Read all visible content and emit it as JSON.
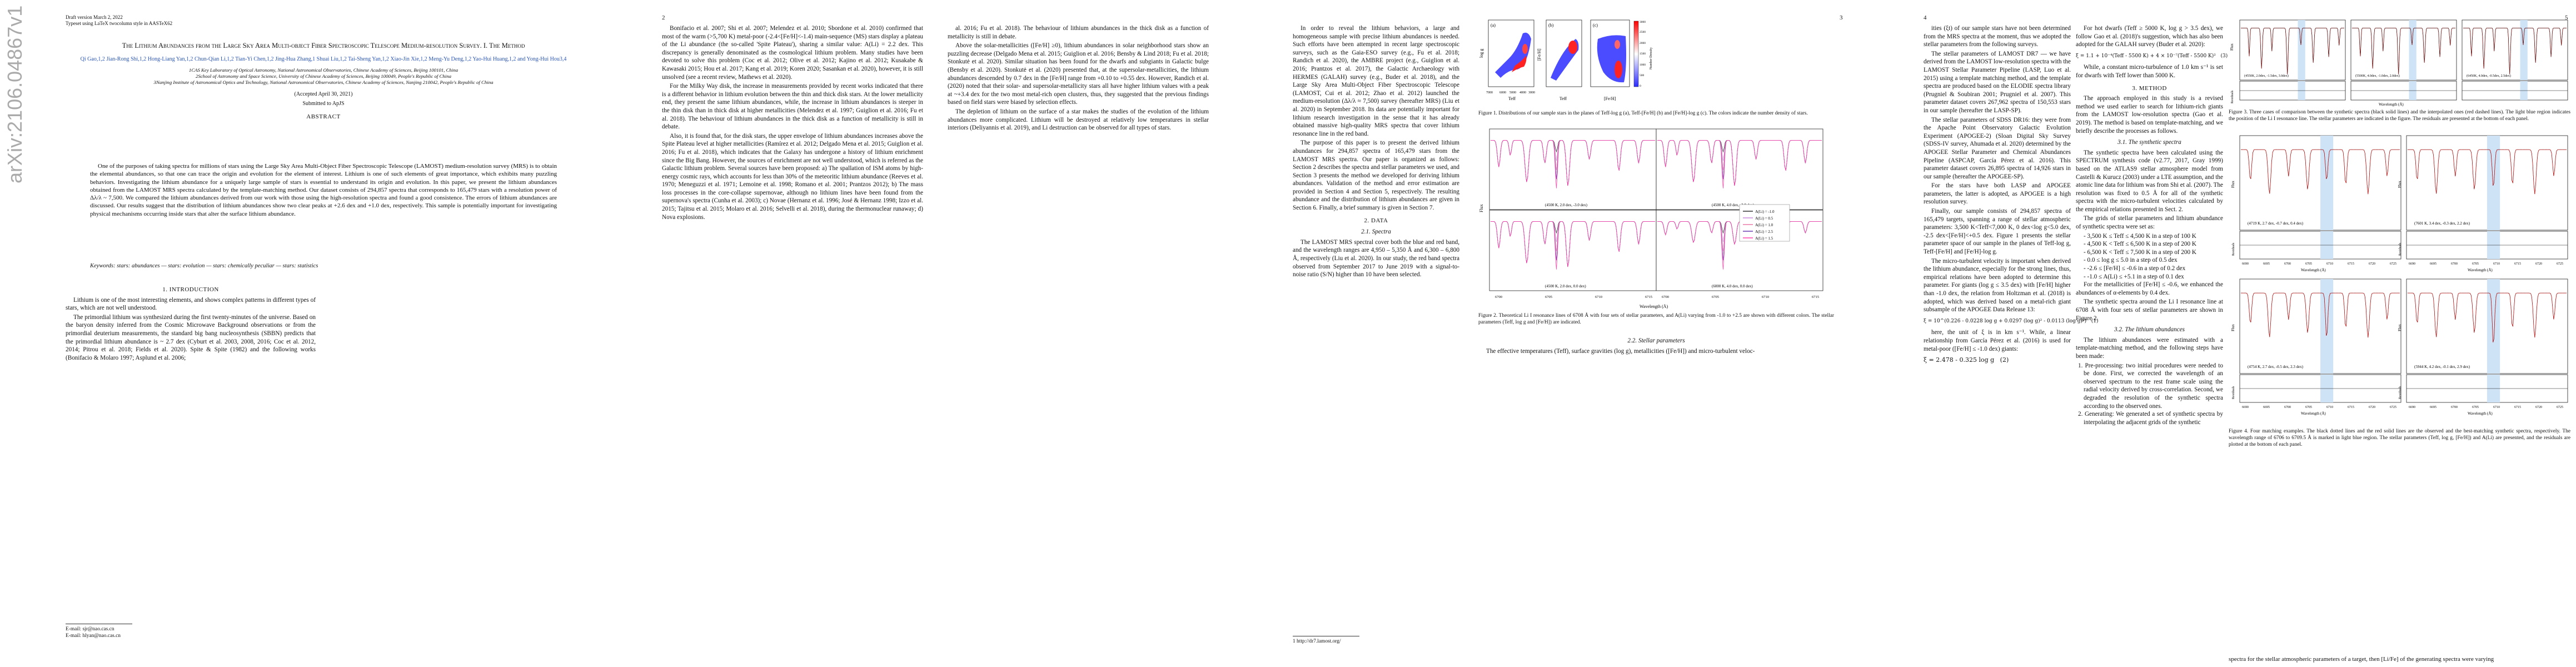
{
  "arxiv_stamp": "arXiv:2106.04867v1  [astro-ph.SR]  9 Jun 2021",
  "page1": {
    "draft_line": "Draft version March 2, 2022",
    "typeset_line": "Typeset using LaTeX twocolumn style in AASTeX62",
    "title": "The Lithium Abundances from the Large Sky Area Multi-object Fiber Spectroscopic Telescope Medium-resolution Survey. I. The Method",
    "authors": "Qi Gao,1,2 Jian-Rong Shi,1,2 Hong-Liang Yan,1,2 Chun-Qian Li,1,2 Tian-Yi Chen,1,2 Jing-Hua Zhang,1 Shuai Liu,1,2 Tai-Sheng Yan,1,2 Xiao-Jin Xie,1,2 Meng-Yu Deng,1,2 Yao-Hui Huang,1,2 and Yong-Hui Hou3,4",
    "affil_1": "1CAS Key Laboratory of Optical Astronomy, National Astronomical Observatories, Chinese Academy of Sciences, Beijing 100101, China",
    "affil_2": "2School of Astronomy and Space Science, University of Chinese Academy of Sciences, Beijing 100049, People's Republic of China",
    "affil_3": "3Nanjing Institute of Astronomical Optics and Technology, National Astronomical Observatories, Chinese Academy of Sciences, Nanjing 210042, People's Republic of China",
    "accepted": "(Accepted April 30, 2021)",
    "submitted": "Submitted to ApJS",
    "abstract_head": "ABSTRACT",
    "abstract": "One of the purposes of taking spectra for millions of stars using the Large Sky Area Multi-Object Fiber Spectroscopic Telescope (LAMOST) medium-resolution survey (MRS) is to obtain the elemental abundances, so that one can trace the origin and evolution for the element of interest. Lithium is one of such elements of great importance, which exhibits many puzzling behaviors. Investigating the lithium abundance for a uniquely large sample of stars is essential to understand its origin and evolution. In this paper, we present the lithium abundances obtained from the LAMOST MRS spectra calculated by the template-matching method. Our dataset consists of 294,857 spectra that corresponds to 165,479 stars with a resolution power of Δλ/λ ~ 7,500. We compared the lithium abundances derived from our work with those using the high-resolution spectra and found a good consistence. The errors of lithium abundances are discussed. Our results suggest that the distribution of lithium abundances show two clear peaks at +2.6 dex and +1.0 dex, respectively. This sample is potentially important for investigating physical mechanisms occurring inside stars that alter the surface lithium abundance.",
    "keywords": "Keywords: stars: abundances — stars: evolution — stars: chemically peculiar — stars: statistics",
    "intro_head": "1. INTRODUCTION",
    "intro_p1": "Lithium is one of the most interesting elements, and shows complex patterns in different types of stars, which are not well understood.",
    "intro_p2": "The primordial lithium was synthesized during the first twenty-minutes of the universe. Based on the baryon density inferred from the Cosmic Microwave Background observations or from the primordial deuterium measurements, the standard big bang nucleosynthesis (SBBN) predicts that the primordial lithium abundance is ~ 2.7 dex (Cyburt et al. 2003, 2008, 2016; Coc et al. 2012, 2014; Pitrou et al. 2018; Fields et al. 2020). Spite & Spite (1982) and the following works (Bonifacio & Molaro 1997; Asplund et al. 2006;",
    "footnote_1": "E-mail: sjr@nao.cas.cn",
    "footnote_2": "E-mail: hlyan@nao.cas.cn"
  },
  "page2": {
    "number": "2",
    "colA_p1": "Bonifacio et al. 2007; Shi et al. 2007; Melendez et al. 2010; Sbordone et al. 2010) confirmed that most of the warm (>5,700 K) metal-poor (-2.4<[Fe/H]<-1.4) main-sequence (MS) stars display a plateau of the Li abundance (the so-called 'Spite Plateau'), sharing a similar value: A(Li) = 2.2 dex. This discrepancy is generally denominated as the cosmological lithium problem. Many studies have been devoted to solve this problem (Coc et al. 2012; Olive et al. 2012; Kajino et al. 2012; Kusakabe & Kawasaki 2015; Hou et al. 2017; Kang et al. 2019; Koren 2020; Sasankan et al. 2020), however, it is still unsolved (see a recent review, Mathews et al. 2020).",
    "colA_p2": "For the Milky Way disk, the increase in measurements provided by recent works indicated that there is a different behavior in lithium evolution between the thin and thick disk stars. At the lower metallicity end, they present the same lithium abundances, while, the increase in lithium abundances is steeper in the thin disk than in thick disk at higher metallicities (Melendez et al. 1997; Guiglion et al. 2016; Fu et al. 2018). The behaviour of lithium abundances in the thick disk as a function of metallicity is still in debate.",
    "colA_p3": "Also, it is found that, for the disk stars, the upper envelope of lithium abundances increases above the Spite Plateau level at higher metallicities (Ramírez et al. 2012; Delgado Mena et al. 2015; Guiglion et al. 2016; Fu et al. 2018), which indicates that the Galaxy has undergone a history of lithium enrichment since the Big Bang. However, the sources of enrichment are not well understood, which is referred as the Galactic lithium problem. Several sources have been proposed: a) The spallation of ISM atoms by high-energy cosmic rays, which accounts for less than 30% of the meteoritic lithium abundance (Reeves et al. 1970; Meneguzzi et al. 1971; Lemoine et al. 1998; Romano et al. 2001; Prantzos 2012); b) The mass loss processes in the core-collapse supernovae, although no lithium lines have been found from the supernova's spectra (Cunha et al. 2003); c) Novae (Hernanz et al. 1996; José & Hernanz 1998; Izzo et al. 2015; Tajitsu et al. 2015; Molaro et al. 2016; Selvelli et al. 2018), during the thermonuclear runaway; d) Nova explosions.",
    "colB_p1": "al. 2016; Fu et al. 2018). The behaviour of lithium abundances in the thick disk as a function of metallicity is still in debate.",
    "colB_p2": "Above the solar-metallicities ([Fe/H] ≥0), lithium abundances in solar neighborhood stars show an puzzling decrease (Delgado Mena et al. 2015; Guiglion et al. 2016; Bensby & Lind 2018; Fu et al. 2018; Stonkutė et al. 2020). Similar situation has been found for the dwarfs and subgiants in Galactic bulge (Bensby et al. 2020). Stonkutė et al. (2020) presented that, at the supersolar-metallicities, the lithium abundances descended by 0.7 dex in the [Fe/H] range from +0.10 to +0.55 dex. However, Randich et al. (2020) noted that their solar- and supersolar-metallicity stars all have higher lithium values with a peak at ~+3.4 dex for the two most metal-rich open clusters, thus, they suggested that the previous findings based on field stars were biased by selection effects.",
    "colB_p3": "The depletion of lithium on the surface of a star makes the studies of the evolution of the lithium abundances more complicated. Lithium will be destroyed at relatively low temperatures in stellar interiors (Deliyannis et al. 2019), and Li destruction can be observed for all types of stars."
  },
  "page3": {
    "number": "3",
    "colA_p1": "In order to reveal the lithium behaviors, a large and homogeneous sample with precise lithium abundances is needed. Such efforts have been attempted in recent large spectroscopic surveys, such as the Gaia-ESO survey (e.g., Fu et al. 2018; Randich et al. 2020), the AMBRE project (e.g., Guiglion et al. 2016; Prantzos et al. 2017), the Galactic Archaeology with HERMES (GALAH) survey (e.g., Buder et al. 2018), and the Large Sky Area Multi-Object Fiber Spectroscopic Telescope (LAMOST, Cui et al. 2012; Zhao et al. 2012) launched the medium-resolution (Δλ/λ ≈ 7,500) survey (hereafter MRS) (Liu et al. 2020) in September 2018. Its data are potentially important for lithium research investigation in the sense that it has already obtained massive high-quality MRS spectra that cover lithium resonance line in the red band.",
    "colA_p2": "The purpose of this paper is to present the derived lithium abundances for 294,857 spectra of 165,479 stars from the LAMOST MRS spectra. Our paper is organized as follows: Section 2 describes the spectra and stellar parameters we used, and Section 3 presents the method we developed for deriving lithium abundances. Validation of the method and error estimation are provided in Section 4 and Section 5, respectively. The resulting abundance and the distribution of lithium abundances are given in Section 6. Finally, a brief summary is given in Section 7.",
    "data_head": "2. DATA",
    "spectra_head": "2.1. Spectra",
    "colA_p3": "The LAMOST MRS spectral cover both the blue and red band, and the wavelength ranges are 4,950 – 5,350 Å and 6,300 – 6,800 Å, respectively (Liu et al. 2020). In our study, the red band spectra observed from September 2017 to June 2019 with a signal-to-noise ratio (S/N) higher than 10 have been selected.",
    "footnote": "1 http://dr7.lamost.org/",
    "fig1_caption": "Figure 1. Distributions of our sample stars in the planes of Teff-log g (a), Teff-[Fe/H] (b) and [Fe/H]-log g (c). The colors indicate the number density of stars.",
    "fig2_caption": "Figure 2. Theoretical Li I resonance lines of 6708 Å with four sets of stellar parameters, and A(Li) varying from -1.0 to +2.5 are shown with different colors. The stellar parameters (Teff, log g and [Fe/H]) are indicated.",
    "stellar_head": "2.2. Stellar parameters",
    "colB_p1": "The effective temperatures (Teff), surface gravities (log g), metallicities ([Fe/H]) and micro-turbulent veloc-"
  },
  "page4": {
    "number": "4",
    "colA_p1": "ities (ξt) of our sample stars have not been determined from the MRS spectra at the moment, thus we adopted the stellar parameters from the following surveys.",
    "colA_p2": "The stellar parameters of LAMOST DR7 — we have derived from the LAMOST low-resolution spectra with the LAMOST Stellar Parameter Pipeline (LASP, Luo et al. 2015) using a template matching method, and the template spectra are produced based on the ELODIE spectra library (Prugniel & Soubiran 2001; Prugniel et al. 2007). This parameter dataset covers 267,962 spectra of 150,553 stars in our sample (hereafter the LASP-SP).",
    "colA_p3": "The stellar parameters of SDSS DR16: they were from the Apache Point Observatory Galactic Evolution Experiment (APOGEE-2) (Sloan Digital Sky Survey (SDSS-IV survey, Ahumada et al. 2020) determined by the APOGEE Stellar Parameter and Chemical Abundances Pipeline (ASPCAP, García Pérez et al. 2016). This parameter dataset covers 26,895 spectra of 14,926 stars in our sample (hereafter the APOGEE-SP).",
    "colA_p4": "For the stars have both LASP and APOGEE parameters, the latter is adopted, as APOGEE is a high resolution survey.",
    "colA_p5": "Finally, our sample consists of 294,857 spectra of 165,479 targets, spanning a range of stellar atmospheric parameters: 3,500 K<Teff<7,000 K, 0 dex<log g<5.0 dex, -2.5 dex<[Fe/H]<+0.5 dex. Figure 1 presents the stellar parameter space of our sample in the planes of Teff-log g, Teff-[Fe/H] and [Fe/H]-log g.",
    "colA_p6": "The micro-turbulent velocity is important when derived the lithium abundance, especially for the strong lines, thus, empirical relations have been adopted to determine this parameter. For giants (log g ≤ 3.5 dex) with [Fe/H] higher than -1.0 dex, the relation from Holtzman et al. (2018) is adopted, which was derived based on a metal-rich giant subsample of the APOGEE Data Release 13:",
    "eq1": "ξ = 10^(0.226 - 0.0228 log g + 0.0297 (log g)² - 0.0113 (log g)³)   (1)",
    "colA_p7": "here, the unit of ξ is in km s⁻¹. While, a linear relationship from García Pérez et al. (2016) is used for metal-poor ([Fe/H] ≤ -1.0 dex) giants:",
    "eq2": "ξ = 2.478 - 0.325 log g   (2)",
    "colB_p1": "For hot dwarfs (Teff ≥ 5000 K, log g > 3.5 dex), we follow Gao et al. (2018)'s suggestion, which has also been adopted for the GALAH survey (Buder et al. 2020):",
    "eq3": "ξ = 1.1 + 10⁻⁴(Teff - 5500 K) + 4 × 10⁻⁷(Teff - 5500 K)²   (3)",
    "colB_p2": "While, a constant micro-turbulence of 1.0 km s⁻¹ is set for dwarfs with Teff lower than 5000 K.",
    "method_head": "3. METHOD",
    "colB_p3": "The approach employed in this study is a revised method we used earlier to search for lithium-rich giants from the LAMOST low-resolution spectra (Gao et al. 2019). The method is based on template-matching, and we briefly describe the processes as follows.",
    "synth_head": "3.1. The synthetic spectra",
    "colB_p4": "The synthetic spectra have been calculated using the SPECTRUM synthesis code (v2.77, 2017, Gray 1999) based on the ATLAS9 stellar atmosphere model from Castelli & Kurucz (2003) under a LTE assumption, and the atomic line data for lithium was from Shi et al. (2007). The resolution was fixed to 0.5 Å for all of the synthetic spectra with the micro-turbulent velocities calculated by the empirical relations presented in Sect. 2.",
    "colB_p5": "The grids of stellar parameters and lithium abundance of synthetic spectra were set as:",
    "grid_1": "- 3,500 K ≤ Teff ≤ 4,500 K in a step of 100 K",
    "grid_2": "- 4,500 K < Teff ≤ 6,500 K in a step of 200 K",
    "grid_3": "- 6,500 K < Teff ≤ 7,500 K in a step of 200 K",
    "grid_4": "- 0.0 ≤ log g ≤ 5.0 in a step of 0.5 dex",
    "grid_5": "- -2.6 ≤ [Fe/H] ≤ -0.6 in a step of 0.2 dex",
    "grid_6": "- -1.0 ≤ A(Li) ≤ +5.1 in a step of 0.1 dex",
    "colB_p6": "For the metallicities of [Fe/H] ≤ -0.6, we enhanced the abundances of α-elements by 0.4 dex.",
    "colB_p7": "The synthetic spectra around the Li I resonance line at 6708 Å with four sets of stellar parameters are shown in Figure 2.",
    "abund_head": "3.2. The lithium abundances",
    "colB_p8": "The lithium abundances were estimated with a template-matching method, and the following steps have been made:",
    "step_1": "1. Pre-processing: two initial procedures were needed to be done. First, we corrected the wavelength of an observed spectrum to the rest frame scale using the radial velocity derived by cross-correlation. Second, we degraded the resolution of the synthetic spectra according to the observed ones.",
    "step_2": "2. Generating: We generated a set of synthetic spectra by interpolating the adjacent grids of the synthetic"
  },
  "page5": {
    "number": "5",
    "fig3_caption": "Figure 3. Three cases of comparison between the synthetic spectra (black solid lines) and the interpolated ones (red dashed lines). The light blue region indicates the position of the Li I resonance line. The stellar parameters are indicated in the figure. The residuals are presented at the bottom of each panel.",
    "fig4_caption": "Figure 4. Four matching examples. The black dotted lines and the red solid lines are the observed and the best-matching synthetic spectra, respectively. The wavelength range of 6706 to 6709.5 Å is marked in light blue region. The stellar parameters (Teff, log g, [Fe/H]) and A(Li) are presented, and the residuals are plotted at the bottom of each panel.",
    "bottom_line": "spectra for the stellar atmospheric parameters of a target, then [Li/Fe] of the generating spectra were varying"
  },
  "figure1": {
    "panel_a": {
      "label": "(a)",
      "xlabel": "Teff",
      "ylabel": "log g",
      "xticks": [
        "7000",
        "6000",
        "5000",
        "4000",
        "3000"
      ],
      "yticks": [
        "0",
        "1",
        "2",
        "3",
        "4",
        "5"
      ]
    },
    "panel_b": {
      "label": "(b)",
      "xlabel": "Teff",
      "ylabel": "[Fe/H]",
      "xticks": [
        "7000",
        "6000",
        "5000",
        "4000"
      ],
      "yticks": [
        "-2",
        "-1",
        "0"
      ]
    },
    "panel_c": {
      "label": "(c)",
      "xlabel": "[Fe/H]",
      "ylabel": "log g",
      "xticks": [
        "-2.0",
        "-1.5",
        "-1.0",
        "-0.5",
        "0.0",
        "0.5"
      ],
      "yticks": [
        "0",
        "1",
        "2",
        "3",
        "4",
        "5"
      ]
    },
    "colorbar_label": "Number Density",
    "colorbar_ticks": [
      "0",
      "500",
      "1000",
      "1500",
      "2000",
      "2500",
      "3000"
    ],
    "colors": {
      "low": "#2b2bff",
      "mid": "#ffffff",
      "high": "#ff0000"
    }
  },
  "figure2": {
    "ylabel": "Flux",
    "xlabel": "Wavelength (Å)",
    "xticks": [
      "6700",
      "6705",
      "6710",
      "6715"
    ],
    "panels": [
      {
        "params": "(4500 K, 2.0 dex, -3.0 dex)"
      },
      {
        "params": "(4500 K, 4.0 dex, -3.0 dex)"
      },
      {
        "params": "(4500 K, 2.0 dex, 0.0 dex)"
      },
      {
        "params": "(6000 K, 4.0 dex, 0.0 dex)"
      }
    ],
    "legend": [
      {
        "label": "A(Li) = -1.0",
        "color": "#333333"
      },
      {
        "label": "A(Li) = 0.5",
        "color": "#c88ad8"
      },
      {
        "label": "A(Li) = 1.0",
        "color": "#e87aa8"
      },
      {
        "label": "A(Li) = 2.5",
        "color": "#6a3fb0"
      },
      {
        "label": "A(Li) = 1.5",
        "color": "#ff44aa"
      }
    ]
  },
  "figure3": {
    "ylabel": "Flux",
    "resid_label": "Residuals",
    "xlabel": "Wavelength (Å)",
    "panels": [
      {
        "params": "(4550K, 2.0dex, -1.5dex, 3.0dex)"
      },
      {
        "params": "(5500K, 4.0dex, -1.0dex, 2.0dex)"
      },
      {
        "params": "(6450K, 4.0dex, -0.5dex, 2.5dex)"
      }
    ],
    "colors": {
      "model": "#111111",
      "interp": "#cc1111",
      "band": "#cfe3f6"
    }
  },
  "figure4": {
    "ylabel": "Flux",
    "resid_label": "Residuals",
    "xlabel": "Wavelength (Å)",
    "xticks": [
      "6690",
      "6695",
      "6700",
      "6705",
      "6710",
      "6715",
      "6720",
      "6725"
    ],
    "panels": [
      {
        "params": "(4719 K, 2.7 dex, -0.7 dex, 0.4 dex)"
      },
      {
        "params": "(7601 K, 3.4 dex, -0.3 dex, 2.2 dex)"
      },
      {
        "params": "(4754 K, 2.7 dex, -0.5 dex, 2.3 dex)"
      },
      {
        "params": "(5944 K, 4.2 dex, -0.1 dex, 2.9 dex)"
      }
    ],
    "colors": {
      "observed": "#111111",
      "synthetic": "#cc1111",
      "band": "#cfe3f6"
    }
  }
}
